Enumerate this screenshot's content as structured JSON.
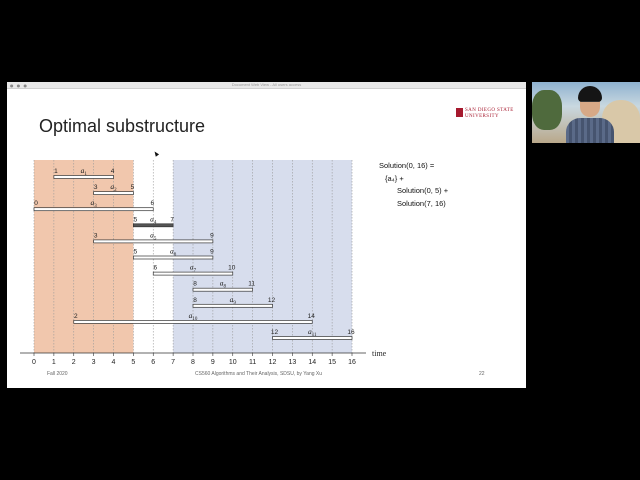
{
  "window": {
    "title": "Document Web View - All users access",
    "dots": "● ● ●"
  },
  "slide": {
    "title": "Optimal substructure",
    "logo": {
      "line1": "SAN DIEGO STATE",
      "line2": "UNIVERSITY"
    },
    "solution_lines": [
      "Solution(0, 16) =",
      "{a₄} +",
      "Solution(0, 5) +",
      "Solution(7, 16)"
    ],
    "footer_left": "Fall 2020",
    "footer_center": "CS560 Algorithms and Their Analysis, SDSU, by Yang Xu",
    "page_number": "22"
  },
  "colors": {
    "left_band": "#f1c7ad",
    "right_band": "#d7dded",
    "selected_bar": "#555555"
  },
  "chart_data": {
    "type": "interval",
    "xlabel": "time",
    "xlim": [
      0,
      16
    ],
    "xticks": [
      0,
      1,
      2,
      3,
      4,
      5,
      6,
      7,
      8,
      9,
      10,
      11,
      12,
      13,
      14,
      15,
      16
    ],
    "shaded_ranges": [
      [
        0,
        5
      ],
      [
        7,
        16
      ]
    ],
    "intervals": [
      {
        "name": "a",
        "sub": "1",
        "start": 1,
        "end": 4
      },
      {
        "name": "a",
        "sub": "2",
        "start": 3,
        "end": 5
      },
      {
        "name": "a",
        "sub": "3",
        "start": 0,
        "end": 6
      },
      {
        "name": "a",
        "sub": "4",
        "start": 5,
        "end": 7,
        "selected": true
      },
      {
        "name": "a",
        "sub": "5",
        "start": 3,
        "end": 9
      },
      {
        "name": "a",
        "sub": "6",
        "start": 5,
        "end": 9
      },
      {
        "name": "a",
        "sub": "7",
        "start": 6,
        "end": 10
      },
      {
        "name": "a",
        "sub": "8",
        "start": 8,
        "end": 11
      },
      {
        "name": "a",
        "sub": "9",
        "start": 8,
        "end": 12
      },
      {
        "name": "a",
        "sub": "10",
        "start": 2,
        "end": 14
      },
      {
        "name": "a",
        "sub": "11",
        "start": 12,
        "end": 16
      }
    ]
  },
  "webcam": {
    "label": "presenter video"
  }
}
